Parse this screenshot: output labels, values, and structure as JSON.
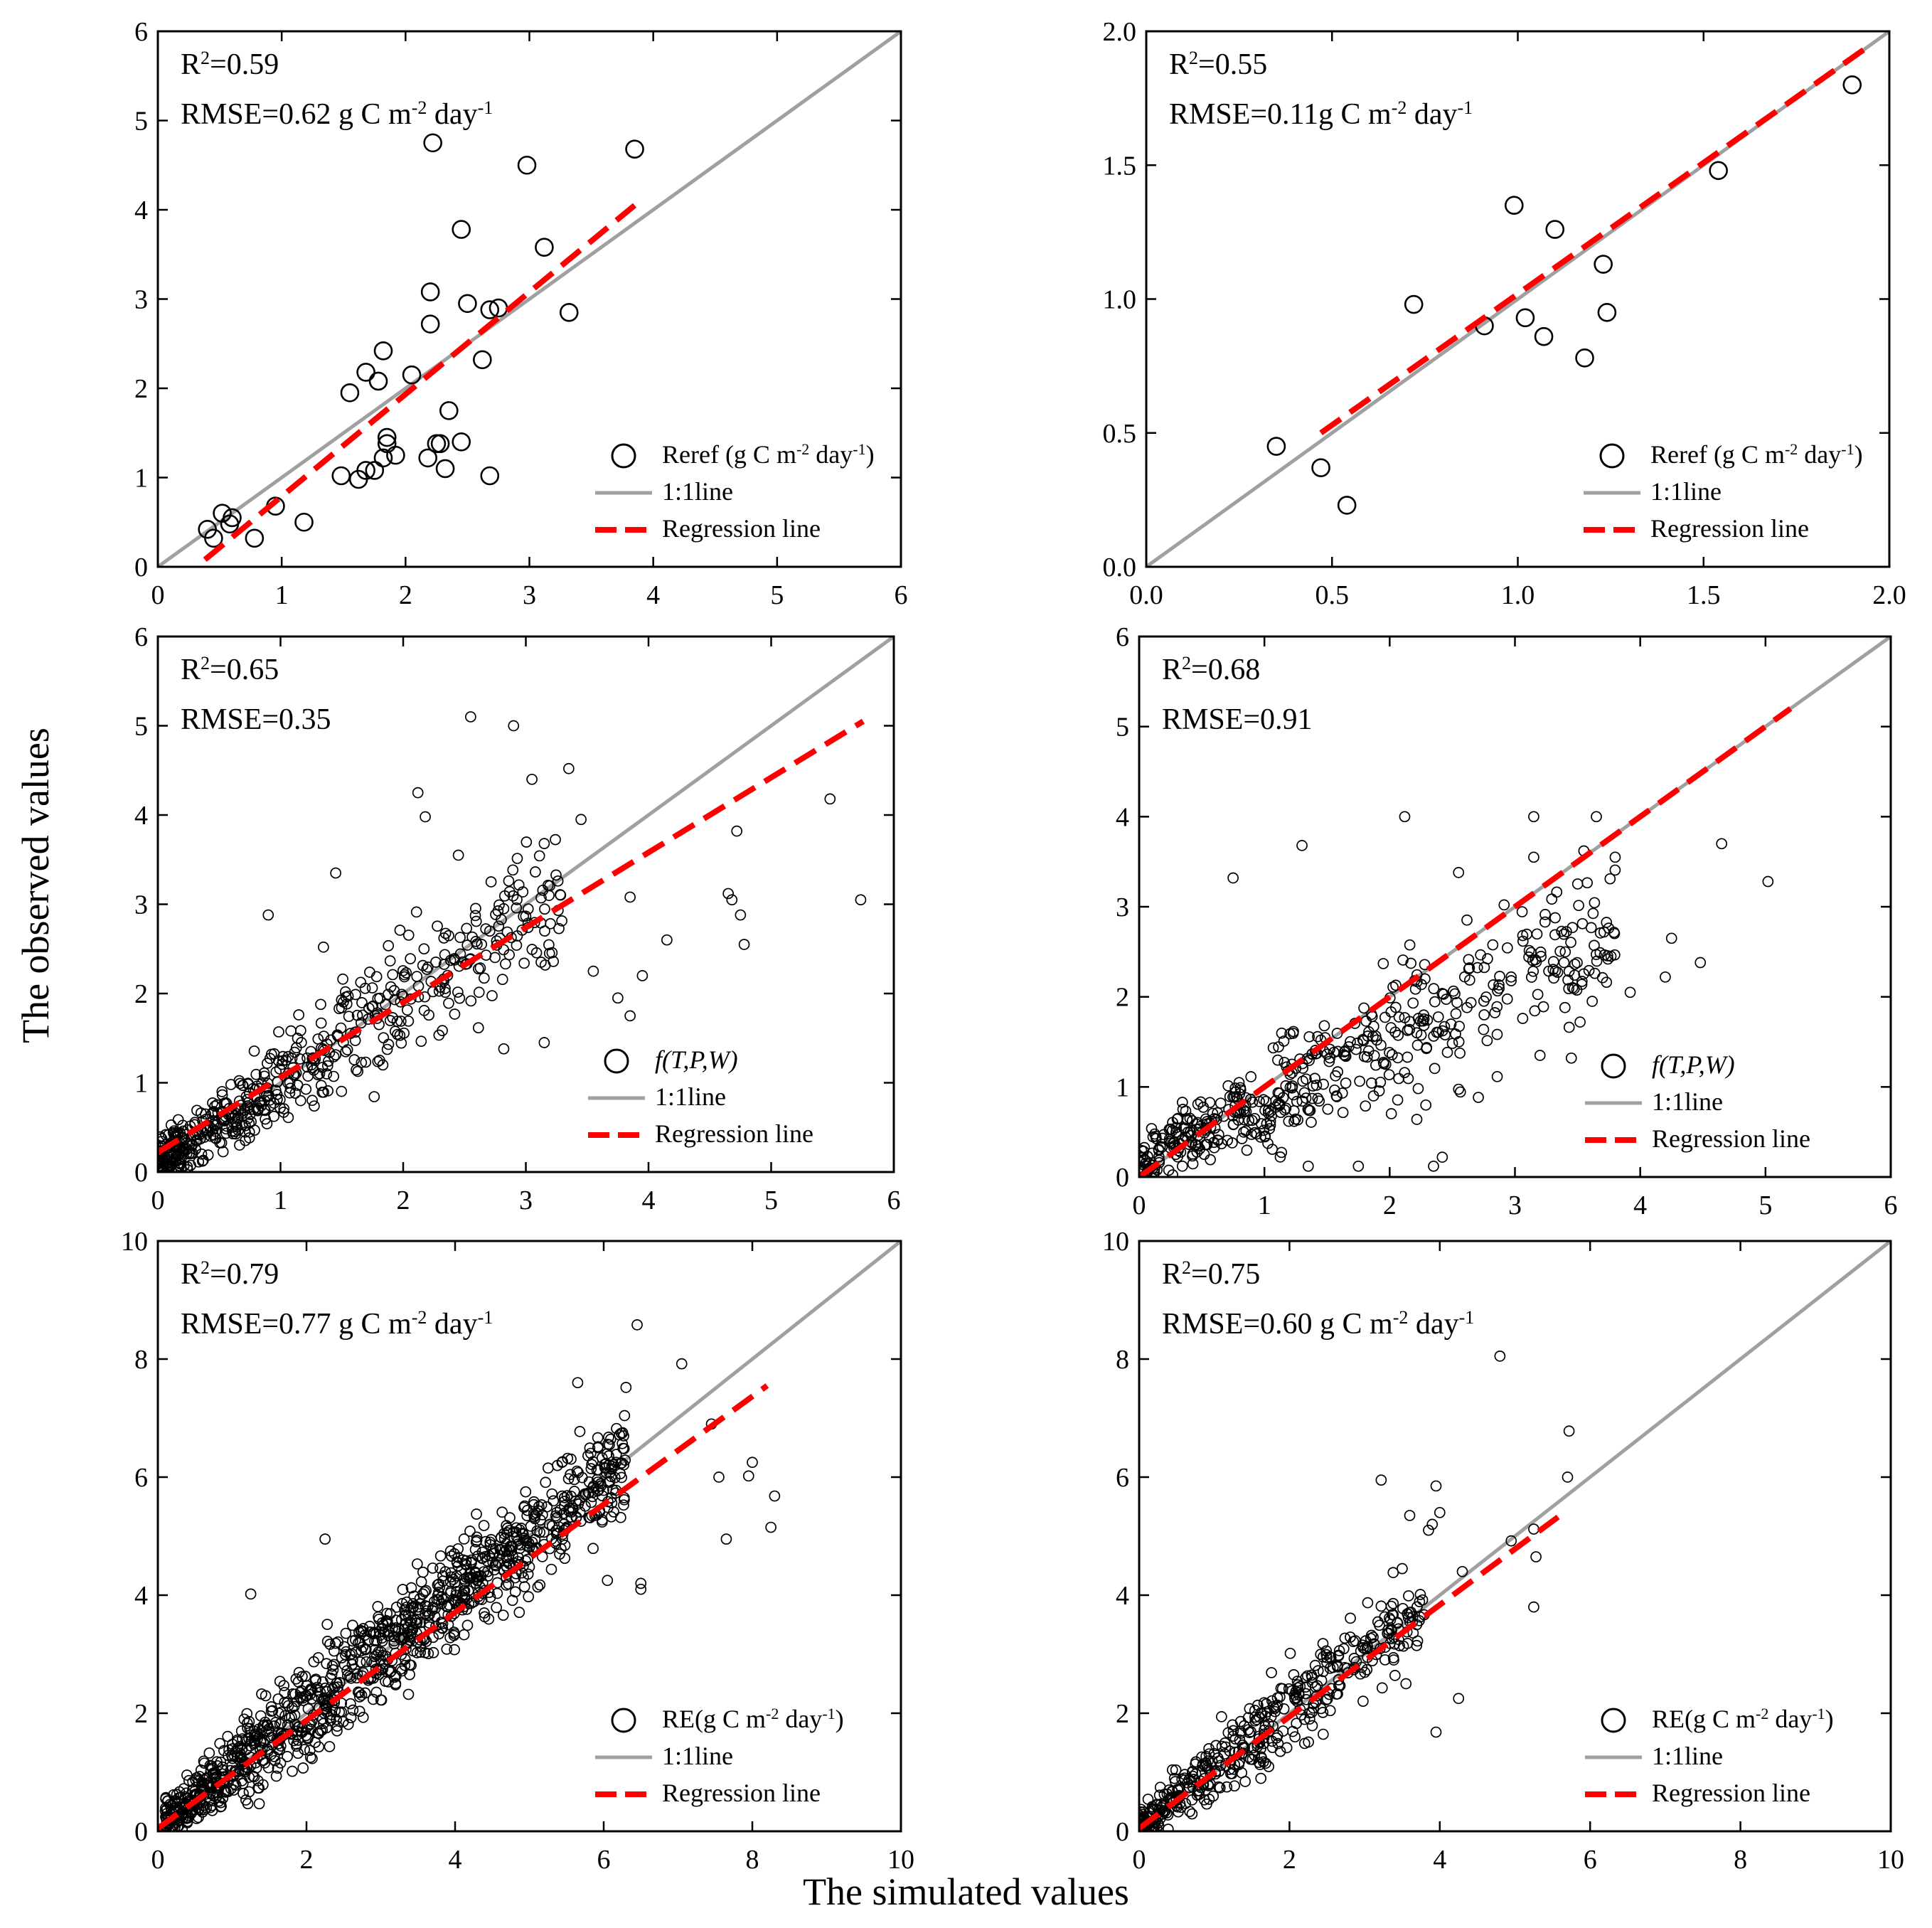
{
  "figure": {
    "xlabel": "The simulated values",
    "ylabel": "The observed values",
    "colors": {
      "marker_edge": "#000000",
      "one_to_one": "#a0a0a0",
      "regression": "#ff0000"
    }
  },
  "chart_data": [
    {
      "type": "scatter",
      "panel": "top-left",
      "stats": [
        {
          "base": "R",
          "sup": "2",
          "rest": "=0.59"
        },
        {
          "base": "RMSE=0.62 g C m",
          "sup": "-2",
          "rest": " day",
          "sup2": "-1"
        }
      ],
      "xlim": [
        0,
        6
      ],
      "ylim": [
        0,
        6
      ],
      "xticks": [
        0,
        1,
        2,
        3,
        4,
        5,
        6
      ],
      "yticks": [
        0,
        1,
        2,
        3,
        4,
        5,
        6
      ],
      "xticklabels": [
        "0",
        "1",
        "2",
        "3",
        "4",
        "5",
        "6"
      ],
      "yticklabels": [
        "0",
        "1",
        "2",
        "3",
        "4",
        "5",
        "6"
      ],
      "marker_size": "large",
      "legend": {
        "position": "bottom-right",
        "entries": [
          {
            "kind": "marker",
            "label": "Reref (g C m",
            "sup": "-2",
            "label2": " day",
            "sup2": "-1",
            "label3": ")"
          },
          {
            "kind": "one_to_one",
            "label": "1:1line"
          },
          {
            "kind": "regression",
            "label": "Regression line"
          }
        ]
      },
      "one_to_one": [
        [
          0,
          0
        ],
        [
          6,
          6
        ]
      ],
      "regression": [
        [
          0.38,
          0.08
        ],
        [
          3.85,
          4.05
        ]
      ],
      "points": [
        [
          0.4,
          0.42
        ],
        [
          0.45,
          0.32
        ],
        [
          0.52,
          0.6
        ],
        [
          0.58,
          0.48
        ],
        [
          0.6,
          0.55
        ],
        [
          0.78,
          0.32
        ],
        [
          0.95,
          0.68
        ],
        [
          1.18,
          0.5
        ],
        [
          1.48,
          1.02
        ],
        [
          1.55,
          1.95
        ],
        [
          1.62,
          0.98
        ],
        [
          1.68,
          1.08
        ],
        [
          1.68,
          2.18
        ],
        [
          1.75,
          1.08
        ],
        [
          1.78,
          2.08
        ],
        [
          1.82,
          2.42
        ],
        [
          1.82,
          1.22
        ],
        [
          1.85,
          1.38
        ],
        [
          1.85,
          1.45
        ],
        [
          1.92,
          1.25
        ],
        [
          2.05,
          2.15
        ],
        [
          2.18,
          1.22
        ],
        [
          2.2,
          2.72
        ],
        [
          2.2,
          3.08
        ],
        [
          2.22,
          4.75
        ],
        [
          2.25,
          1.38
        ],
        [
          2.28,
          1.38
        ],
        [
          2.32,
          1.1
        ],
        [
          2.35,
          1.75
        ],
        [
          2.45,
          3.78
        ],
        [
          2.45,
          1.4
        ],
        [
          2.5,
          2.95
        ],
        [
          2.62,
          2.32
        ],
        [
          2.68,
          1.02
        ],
        [
          2.68,
          2.88
        ],
        [
          2.75,
          2.9
        ],
        [
          2.98,
          4.5
        ],
        [
          3.12,
          3.58
        ],
        [
          3.32,
          2.85
        ],
        [
          3.85,
          4.68
        ]
      ]
    },
    {
      "type": "scatter",
      "panel": "top-right",
      "stats": [
        {
          "base": "R",
          "sup": "2",
          "rest": "=0.55"
        },
        {
          "base": "RMSE=0.11g C m",
          "sup": "-2",
          "rest": " day",
          "sup2": "-1"
        }
      ],
      "xlim": [
        0,
        2
      ],
      "ylim": [
        0,
        2
      ],
      "xticks": [
        0,
        0.5,
        1,
        1.5,
        2
      ],
      "yticks": [
        0,
        0.5,
        1,
        1.5,
        2
      ],
      "xticklabels": [
        "0.0",
        "0.5",
        "1.0",
        "1.5",
        "2.0"
      ],
      "yticklabels": [
        "0.0",
        "0.5",
        "1.0",
        "1.5",
        "2.0"
      ],
      "marker_size": "large",
      "legend": {
        "position": "bottom-right",
        "entries": [
          {
            "kind": "marker",
            "label": "Reref (g C m",
            "sup": "-2",
            "label2": " day",
            "sup2": "-1",
            "label3": ")"
          },
          {
            "kind": "one_to_one",
            "label": "1:1line"
          },
          {
            "kind": "regression",
            "label": "Regression line"
          }
        ]
      },
      "one_to_one": [
        [
          0,
          0
        ],
        [
          2,
          2
        ]
      ],
      "regression": [
        [
          0.47,
          0.5
        ],
        [
          1.95,
          1.95
        ]
      ],
      "points": [
        [
          0.35,
          0.45
        ],
        [
          0.47,
          0.37
        ],
        [
          0.54,
          0.23
        ],
        [
          0.72,
          0.98
        ],
        [
          0.91,
          0.9
        ],
        [
          0.99,
          1.35
        ],
        [
          1.02,
          0.93
        ],
        [
          1.07,
          0.86
        ],
        [
          1.1,
          1.26
        ],
        [
          1.18,
          0.78
        ],
        [
          1.23,
          1.13
        ],
        [
          1.24,
          0.95
        ],
        [
          1.54,
          1.48
        ],
        [
          1.9,
          1.8
        ]
      ]
    },
    {
      "type": "scatter",
      "panel": "middle-left",
      "stats": [
        {
          "base": "R",
          "sup": "2",
          "rest": "=0.65"
        },
        {
          "base": "RMSE=0.35"
        }
      ],
      "xlim": [
        0,
        6
      ],
      "ylim": [
        0,
        6
      ],
      "xticks": [
        0,
        1,
        2,
        3,
        4,
        5,
        6
      ],
      "yticks": [
        0,
        1,
        2,
        3,
        4,
        5,
        6
      ],
      "xticklabels": [
        "0",
        "1",
        "2",
        "3",
        "4",
        "5",
        "6"
      ],
      "yticklabels": [
        "0",
        "1",
        "2",
        "3",
        "4",
        "5",
        "6"
      ],
      "marker_size": "small",
      "legend": {
        "position": "bottom-right",
        "entries": [
          {
            "kind": "marker",
            "label": "f(T,P,W)",
            "italic": true
          },
          {
            "kind": "one_to_one",
            "label": "1:1line"
          },
          {
            "kind": "regression",
            "label": "Regression line"
          }
        ]
      },
      "one_to_one": [
        [
          0,
          0
        ],
        [
          6,
          6
        ]
      ],
      "regression": [
        [
          0,
          0.22
        ],
        [
          5.75,
          5.05
        ]
      ],
      "cloud": {
        "n": 560,
        "seed": 11,
        "xmin": 0,
        "xmax": 3.3,
        "shape": 1.6,
        "slope": 0.92,
        "intercept": 0.1,
        "noise": 0.5,
        "minval": 0.02
      },
      "points": [
        [
          2.55,
          5.1
        ],
        [
          2.9,
          5.0
        ],
        [
          2.12,
          4.25
        ],
        [
          3.35,
          4.52
        ],
        [
          3.05,
          4.4
        ],
        [
          3.45,
          3.95
        ],
        [
          2.18,
          3.98
        ],
        [
          5.48,
          4.18
        ],
        [
          4.72,
          3.82
        ],
        [
          3.15,
          3.68
        ],
        [
          4.65,
          3.12
        ],
        [
          4.68,
          3.05
        ],
        [
          4.75,
          2.88
        ],
        [
          5.73,
          3.05
        ],
        [
          4.78,
          2.55
        ],
        [
          3.85,
          3.08
        ],
        [
          4.15,
          2.6
        ],
        [
          3.95,
          2.2
        ],
        [
          3.55,
          2.25
        ],
        [
          3.75,
          1.95
        ],
        [
          3.85,
          1.75
        ],
        [
          2.82,
          1.38
        ],
        [
          3.15,
          1.45
        ],
        [
          2.82,
          2.95
        ],
        [
          2.45,
          3.55
        ],
        [
          1.45,
          3.35
        ],
        [
          0.9,
          2.88
        ],
        [
          1.35,
          2.52
        ]
      ]
    },
    {
      "type": "scatter",
      "panel": "middle-right",
      "stats": [
        {
          "base": "R",
          "sup": "2",
          "rest": "=0.68"
        },
        {
          "base": "RMSE=0.91"
        }
      ],
      "xlim": [
        0,
        6
      ],
      "ylim": [
        0,
        6
      ],
      "xticks": [
        0,
        1,
        2,
        3,
        4,
        5,
        6
      ],
      "yticks": [
        0,
        1,
        2,
        3,
        4,
        5,
        6
      ],
      "xticklabels": [
        "0",
        "1",
        "2",
        "3",
        "4",
        "5",
        "6"
      ],
      "yticklabels": [
        "0",
        "1",
        "2",
        "3",
        "4",
        "5",
        "6"
      ],
      "marker_size": "small",
      "legend": {
        "position": "bottom-right",
        "entries": [
          {
            "kind": "marker",
            "label": "f(T,P,W)",
            "italic": true
          },
          {
            "kind": "one_to_one",
            "label": "1:1line"
          },
          {
            "kind": "regression",
            "label": "Regression line"
          }
        ]
      },
      "one_to_one": [
        [
          0,
          0
        ],
        [
          6,
          6
        ]
      ],
      "regression": [
        [
          0,
          0
        ],
        [
          5.2,
          5.2
        ]
      ],
      "cloud": {
        "n": 520,
        "seed": 29,
        "xmin": 0,
        "xmax": 3.8,
        "shape": 1.4,
        "slope": 0.68,
        "intercept": 0.15,
        "noise": 0.55,
        "minval": 0.02
      },
      "points": [
        [
          2.12,
          4.0
        ],
        [
          3.15,
          4.0
        ],
        [
          3.65,
          4.0
        ],
        [
          1.3,
          3.68
        ],
        [
          4.65,
          3.7
        ],
        [
          5.02,
          3.28
        ],
        [
          0.75,
          3.32
        ],
        [
          2.55,
          3.38
        ],
        [
          3.15,
          3.55
        ],
        [
          3.55,
          3.62
        ],
        [
          3.8,
          3.55
        ],
        [
          4.25,
          2.65
        ],
        [
          4.48,
          2.38
        ],
        [
          4.2,
          2.22
        ],
        [
          3.92,
          2.05
        ],
        [
          3.52,
          1.72
        ],
        [
          3.2,
          1.35
        ],
        [
          3.45,
          1.32
        ],
        [
          2.42,
          0.22
        ],
        [
          2.35,
          0.12
        ],
        [
          1.75,
          0.12
        ],
        [
          1.35,
          0.12
        ]
      ]
    },
    {
      "type": "scatter",
      "panel": "bottom-left",
      "stats": [
        {
          "base": "R",
          "sup": "2",
          "rest": "=0.79"
        },
        {
          "base": "RMSE=0.77 g C m",
          "sup": "-2",
          "rest": " day",
          "sup2": "-1"
        }
      ],
      "xlim": [
        0,
        10
      ],
      "ylim": [
        0,
        10
      ],
      "xticks": [
        0,
        2,
        4,
        6,
        8,
        10
      ],
      "yticks": [
        0,
        2,
        4,
        6,
        8,
        10
      ],
      "xticklabels": [
        "0",
        "2",
        "4",
        "6",
        "8",
        "10"
      ],
      "yticklabels": [
        "0",
        "2",
        "4",
        "6",
        "8",
        "10"
      ],
      "marker_size": "small",
      "legend": {
        "position": "bottom-right",
        "entries": [
          {
            "kind": "marker",
            "label": "RE(g C m",
            "sup": "-2",
            "label2": " day",
            "sup2": "-1",
            "label3": ")"
          },
          {
            "kind": "one_to_one",
            "label": "1:1line"
          },
          {
            "kind": "regression",
            "label": "Regression line"
          }
        ]
      },
      "one_to_one": [
        [
          0,
          0
        ],
        [
          10,
          10
        ]
      ],
      "regression": [
        [
          0,
          0.05
        ],
        [
          8.2,
          7.55
        ]
      ],
      "cloud": {
        "n": 1100,
        "seed": 47,
        "xmin": 0.1,
        "xmax": 6.3,
        "shape": 1.15,
        "slope": 0.98,
        "intercept": 0.1,
        "noise": 0.62,
        "minval": 0.03
      },
      "points": [
        [
          6.45,
          8.58
        ],
        [
          7.05,
          7.92
        ],
        [
          6.3,
          7.52
        ],
        [
          5.65,
          7.6
        ],
        [
          7.45,
          6.9
        ],
        [
          7.95,
          6.02
        ],
        [
          7.55,
          6.0
        ],
        [
          8.0,
          6.25
        ],
        [
          8.3,
          5.68
        ],
        [
          7.65,
          4.95
        ],
        [
          8.25,
          5.15
        ],
        [
          6.5,
          4.2
        ],
        [
          6.5,
          4.1
        ],
        [
          6.05,
          4.25
        ],
        [
          2.25,
          4.95
        ],
        [
          1.25,
          4.02
        ]
      ]
    },
    {
      "type": "scatter",
      "panel": "bottom-right",
      "stats": [
        {
          "base": "R",
          "sup": "2",
          "rest": "=0.75"
        },
        {
          "base": "RMSE=0.60 g C m",
          "sup": "-2",
          "rest": " day",
          "sup2": "-1"
        }
      ],
      "xlim": [
        0,
        10
      ],
      "ylim": [
        0,
        10
      ],
      "xticks": [
        0,
        2,
        4,
        6,
        8,
        10
      ],
      "yticks": [
        0,
        2,
        4,
        6,
        8,
        10
      ],
      "xticklabels": [
        "0",
        "2",
        "4",
        "6",
        "8",
        "10"
      ],
      "yticklabels": [
        "0",
        "2",
        "4",
        "6",
        "8",
        "10"
      ],
      "marker_size": "small",
      "legend": {
        "position": "bottom-right",
        "entries": [
          {
            "kind": "marker",
            "label": "RE(g C m",
            "sup": "-2",
            "label2": " day",
            "sup2": "-1",
            "label3": ")"
          },
          {
            "kind": "one_to_one",
            "label": "1:1line"
          },
          {
            "kind": "regression",
            "label": "Regression line"
          }
        ]
      },
      "one_to_one": [
        [
          0,
          0
        ],
        [
          10,
          10
        ]
      ],
      "regression": [
        [
          0,
          0.05
        ],
        [
          5.6,
          5.35
        ]
      ],
      "cloud": {
        "n": 430,
        "seed": 83,
        "xmin": 0,
        "xmax": 3.8,
        "shape": 1.55,
        "slope": 0.98,
        "intercept": 0.1,
        "noise": 0.55,
        "minval": 0.03
      },
      "points": [
        [
          4.8,
          8.05
        ],
        [
          5.72,
          6.78
        ],
        [
          5.7,
          6.0
        ],
        [
          3.22,
          5.95
        ],
        [
          3.95,
          5.85
        ],
        [
          3.6,
          5.35
        ],
        [
          3.9,
          5.2
        ],
        [
          3.85,
          5.1
        ],
        [
          4.0,
          5.4
        ],
        [
          4.95,
          4.92
        ],
        [
          5.25,
          5.12
        ],
        [
          5.28,
          4.65
        ],
        [
          5.25,
          3.8
        ],
        [
          4.3,
          4.4
        ],
        [
          3.5,
          4.45
        ],
        [
          3.95,
          1.68
        ],
        [
          4.25,
          2.25
        ],
        [
          3.55,
          2.5
        ]
      ]
    }
  ]
}
